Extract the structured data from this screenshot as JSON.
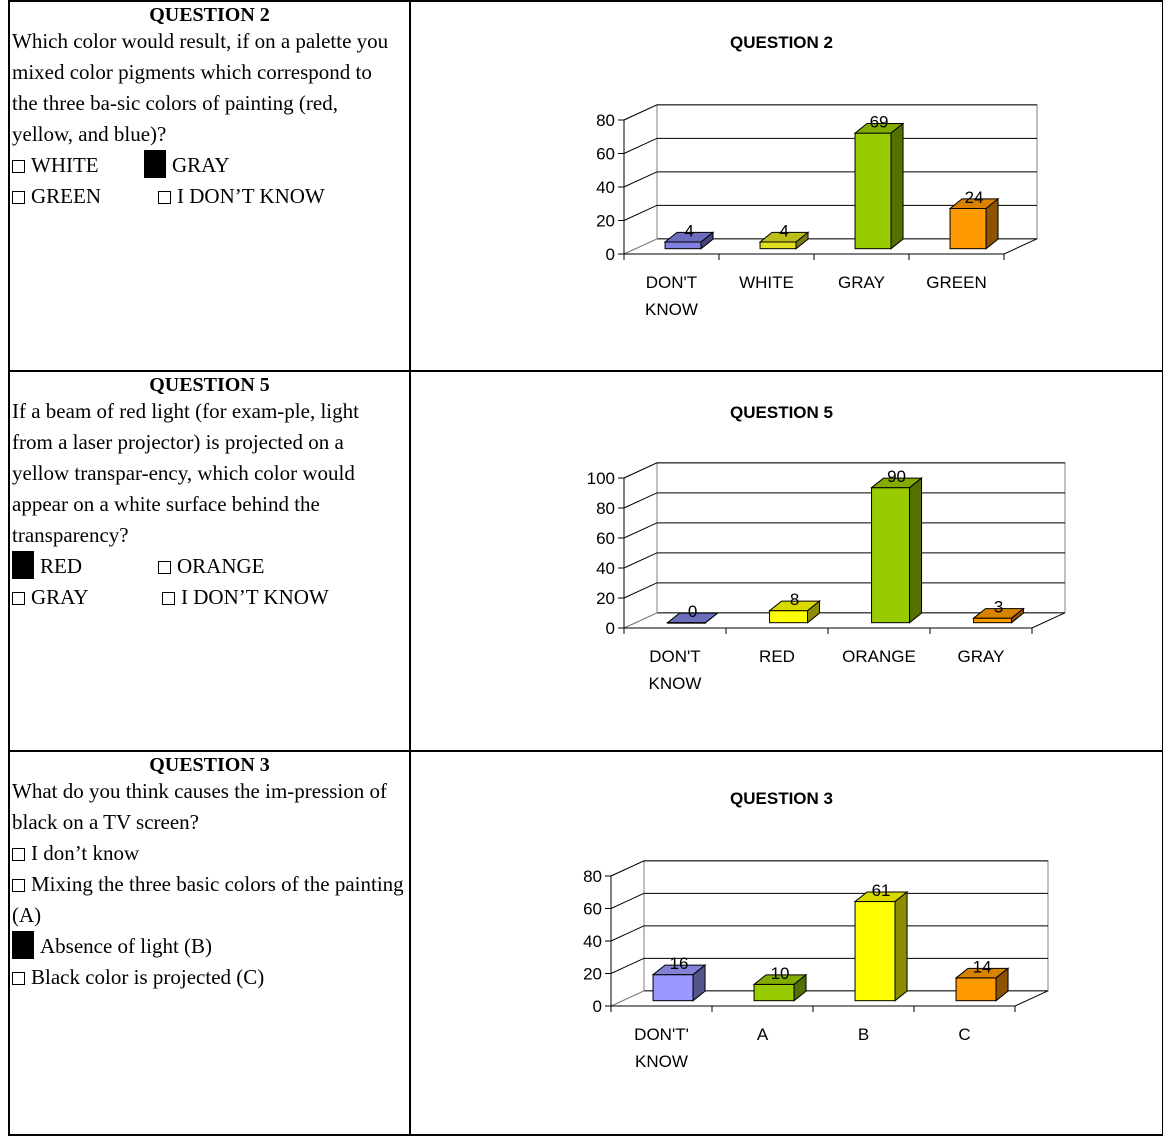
{
  "rows": [
    {
      "title": "QUESTION 2",
      "text": "Which color would result, if on a palette you mixed color pigments which correspond to the three ba-sic colors of painting (red, yellow, and blue)?",
      "options": [
        [
          {
            "label": "WHITE",
            "checked": false
          },
          {
            "label": "GRAY",
            "checked": true
          }
        ],
        [
          {
            "label": "GREEN",
            "checked": false
          },
          {
            "label": "I DON’T KNOW",
            "checked": false
          }
        ]
      ]
    },
    {
      "title": "QUESTION 5",
      "text": "If a beam of red light (for exam-ple, light from a laser projector) is projected on a yellow transpar-ency, which color would appear on a white surface behind the transparency?",
      "options": [
        [
          {
            "label": "RED",
            "checked": true
          },
          {
            "label": "ORANGE",
            "checked": false
          }
        ],
        [
          {
            "label": "GRAY",
            "checked": false
          },
          {
            "label": "I DON’T KNOW",
            "checked": false
          }
        ]
      ]
    },
    {
      "title": "QUESTION 3",
      "text": "What do you think causes the im-pression of black on a TV screen?",
      "options": [
        [
          {
            "label": "I don’t know",
            "checked": false
          }
        ],
        [
          {
            "label": "Mixing the three basic colors of the painting (A)",
            "checked": false
          }
        ],
        [
          {
            "label": "Absence of light (B)",
            "checked": true
          }
        ],
        [
          {
            "label": "Black color is projected (C)",
            "checked": false
          }
        ]
      ]
    }
  ],
  "chart_data": [
    {
      "type": "bar",
      "title": "QUESTION 2",
      "categories": [
        "DON'T KNOW",
        "WHITE",
        "GRAY",
        "GREEN"
      ],
      "values": [
        4,
        4,
        69,
        24
      ],
      "colors": [
        "#8080e0",
        "#e0e020",
        "#99cc00",
        "#ff9900"
      ],
      "ylim": [
        0,
        80
      ],
      "yticks": [
        0,
        20,
        40,
        60,
        80
      ],
      "grid": true
    },
    {
      "type": "bar",
      "title": "QUESTION 5",
      "categories": [
        "DON'T KNOW",
        "RED",
        "ORANGE",
        "GRAY"
      ],
      "values": [
        0,
        8,
        90,
        3
      ],
      "colors": [
        "#8080e0",
        "#ffff00",
        "#99cc00",
        "#ff9900"
      ],
      "ylim": [
        0,
        100
      ],
      "yticks": [
        0,
        20,
        40,
        60,
        80,
        100
      ],
      "grid": true
    },
    {
      "type": "bar",
      "title": "QUESTION 3",
      "categories": [
        "DON'T' KNOW",
        "A",
        "B",
        "C"
      ],
      "values": [
        16,
        10,
        61,
        14
      ],
      "colors": [
        "#9999ff",
        "#99cc00",
        "#ffff00",
        "#ff9900"
      ],
      "ylim": [
        0,
        80
      ],
      "yticks": [
        0,
        20,
        40,
        60,
        80
      ],
      "grid": true
    }
  ]
}
